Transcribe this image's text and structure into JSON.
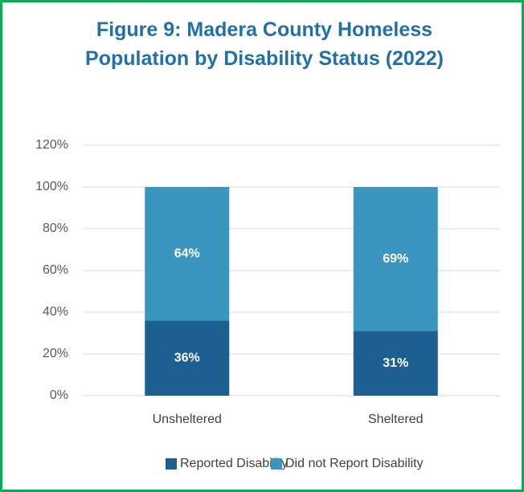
{
  "chart_data": {
    "type": "stacked_bar",
    "title": "Figure 9: Madera County Homeless Population by Disability Status (2022)",
    "categories": [
      "Unsheltered",
      "Sheltered"
    ],
    "series": [
      {
        "name": "Reported Disability",
        "color": "#1d5f91",
        "values": [
          36,
          31
        ],
        "value_labels": [
          "36%",
          "31%"
        ]
      },
      {
        "name": "Did not Report Disability",
        "color": "#3a96bf",
        "values": [
          64,
          69
        ],
        "value_labels": [
          "64%",
          "69%"
        ]
      }
    ],
    "ylim": [
      0,
      120
    ],
    "yticks": [
      {
        "value": 0,
        "label": "0%"
      },
      {
        "value": 20,
        "label": "20%"
      },
      {
        "value": 40,
        "label": "40%"
      },
      {
        "value": 60,
        "label": "60%"
      },
      {
        "value": 80,
        "label": "80%"
      },
      {
        "value": 100,
        "label": "100%"
      },
      {
        "value": 120,
        "label": "120%"
      }
    ],
    "grid": true,
    "legend": "bottom"
  }
}
